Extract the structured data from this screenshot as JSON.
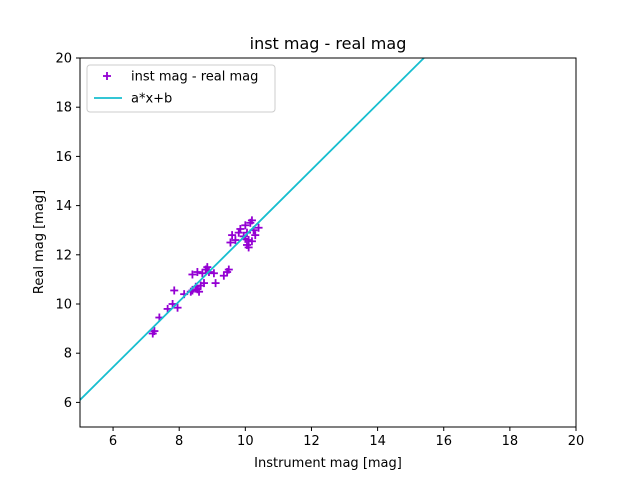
{
  "chart_data": {
    "type": "scatter",
    "title": "inst mag - real mag",
    "xlabel": "Instrument mag [mag]",
    "ylabel": "Real mag [mag]",
    "xlim": [
      5,
      20
    ],
    "ylim": [
      5,
      20
    ],
    "xticks": [
      6,
      8,
      10,
      12,
      14,
      16,
      18,
      20
    ],
    "yticks": [
      6,
      8,
      10,
      12,
      14,
      16,
      18,
      20
    ],
    "grid": false,
    "legend_position": "top-left",
    "series": [
      {
        "name": "inst mag - real mag",
        "kind": "scatter",
        "marker": "+",
        "color": "#9400d3",
        "points": [
          [
            7.2,
            8.8
          ],
          [
            7.25,
            8.9
          ],
          [
            7.4,
            9.45
          ],
          [
            7.65,
            9.8
          ],
          [
            7.8,
            10.0
          ],
          [
            7.85,
            10.55
          ],
          [
            7.95,
            9.85
          ],
          [
            8.15,
            10.4
          ],
          [
            8.35,
            10.5
          ],
          [
            8.4,
            10.55
          ],
          [
            8.4,
            11.2
          ],
          [
            8.5,
            10.7
          ],
          [
            8.55,
            10.6
          ],
          [
            8.55,
            11.3
          ],
          [
            8.6,
            10.5
          ],
          [
            8.65,
            10.75
          ],
          [
            8.7,
            11.25
          ],
          [
            8.75,
            10.85
          ],
          [
            8.8,
            11.4
          ],
          [
            8.85,
            11.5
          ],
          [
            8.9,
            11.3
          ],
          [
            9.05,
            11.25
          ],
          [
            9.1,
            10.85
          ],
          [
            9.35,
            11.15
          ],
          [
            9.45,
            11.3
          ],
          [
            9.5,
            11.4
          ],
          [
            9.55,
            12.5
          ],
          [
            9.6,
            12.8
          ],
          [
            9.7,
            12.6
          ],
          [
            9.8,
            12.9
          ],
          [
            9.85,
            13.05
          ],
          [
            9.95,
            12.75
          ],
          [
            10.0,
            12.65
          ],
          [
            10.0,
            13.2
          ],
          [
            10.05,
            12.9
          ],
          [
            10.05,
            12.4
          ],
          [
            10.1,
            12.6
          ],
          [
            10.15,
            13.3
          ],
          [
            10.2,
            13.4
          ],
          [
            10.2,
            12.55
          ],
          [
            10.25,
            13.0
          ],
          [
            10.3,
            12.8
          ],
          [
            10.4,
            13.1
          ],
          [
            10.1,
            12.3
          ]
        ]
      },
      {
        "name": "a*x+b",
        "kind": "line",
        "color": "#17becf",
        "x": [
          5,
          15.4
        ],
        "y": [
          6.1,
          20
        ]
      }
    ]
  }
}
